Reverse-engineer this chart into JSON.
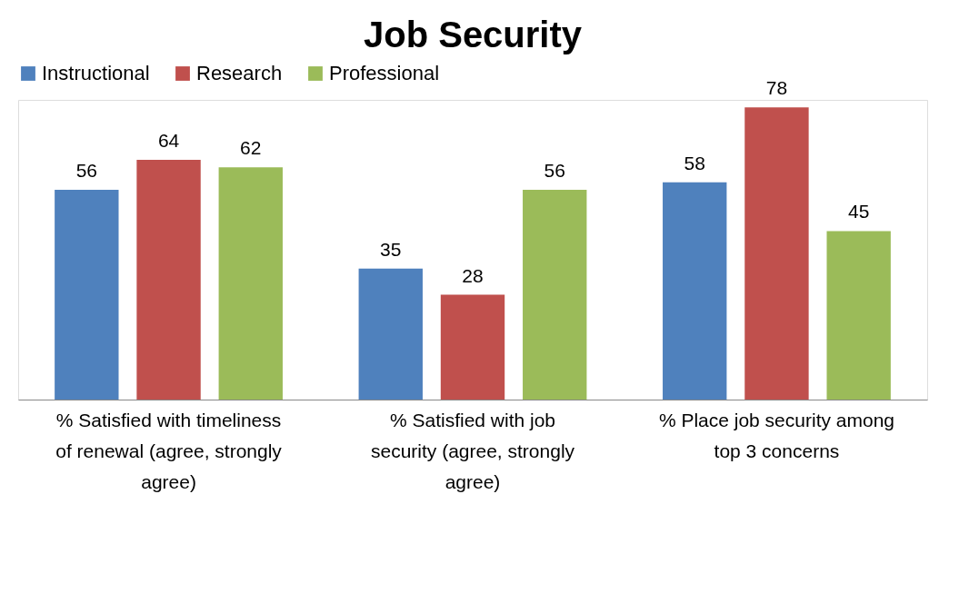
{
  "chart_data": {
    "type": "bar",
    "title": "Job Security",
    "categories": [
      "% Satisfied with timeliness of renewal (agree, strongly agree)",
      "% Satisfied with job security (agree, strongly agree)",
      "% Place job security among top 3 concerns"
    ],
    "series": [
      {
        "name": "Instructional",
        "color": "#4f81bd",
        "values": [
          56,
          35,
          58
        ]
      },
      {
        "name": "Research",
        "color": "#c0504d",
        "values": [
          64,
          28,
          78
        ]
      },
      {
        "name": "Professional",
        "color": "#9bbb59",
        "values": [
          62,
          56,
          45
        ]
      }
    ],
    "data_labels": true,
    "legend": "top",
    "grid": false
  }
}
